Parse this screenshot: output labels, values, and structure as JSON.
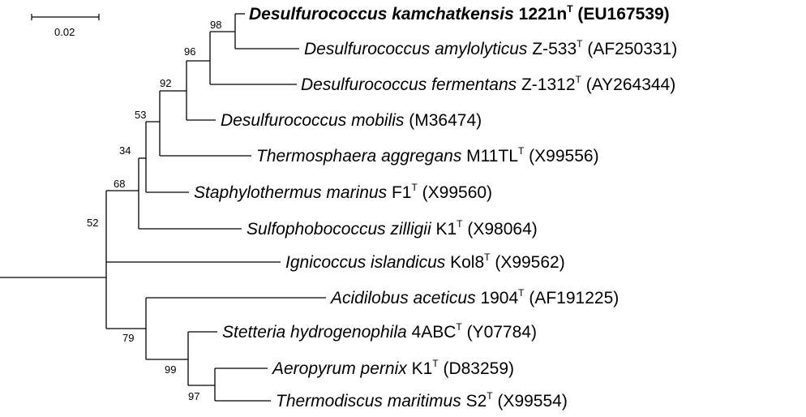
{
  "scale_bar": {
    "label": "0.02"
  },
  "bootstrap": {
    "b98": "98",
    "b96": "96",
    "b92": "92",
    "b53": "53",
    "b34": "34",
    "b68": "68",
    "b52": "52",
    "b79": "79",
    "b99": "99",
    "b97": "97"
  },
  "taxa": [
    {
      "genus_species": "Desulfurococcus kamchatkensis",
      "strain": "1221n",
      "type_mark": "T",
      "accession": "(EU167539)"
    },
    {
      "genus_species": "Desulfurococcus amylolyticus",
      "strain": "Z-533",
      "type_mark": "T",
      "accession": "(AF250331)"
    },
    {
      "genus_species": "Desulfurococcus fermentans",
      "strain": "Z-1312",
      "type_mark": "T",
      "accession": "(AY264344)"
    },
    {
      "genus_species": "Desulfurococcus mobilis",
      "strain": "",
      "type_mark": "",
      "accession": "(M36474)"
    },
    {
      "genus_species": "Thermosphaera aggregans",
      "strain": "M11TL",
      "type_mark": "T",
      "accession": "(X99556)"
    },
    {
      "genus_species": "Staphylothermus marinus",
      "strain": "F1",
      "type_mark": "T",
      "accession": "(X99560)"
    },
    {
      "genus_species": "Sulfophobococcus zilligii",
      "strain": "K1",
      "type_mark": "T",
      "accession": "(X98064)"
    },
    {
      "genus_species": "Ignicoccus islandicus",
      "strain": "Kol8",
      "type_mark": "T",
      "accession": "(X99562)"
    },
    {
      "genus_species": "Acidilobus aceticus",
      "strain": "1904",
      "type_mark": "T",
      "accession": "(AF191225)"
    },
    {
      "genus_species": "Stetteria hydrogenophila",
      "strain": "4ABC",
      "type_mark": "T",
      "accession": "(Y07784)"
    },
    {
      "genus_species": "Aeropyrum pernix",
      "strain": " K1",
      "type_mark": "T",
      "accession": "(D83259)"
    },
    {
      "genus_species": "Thermodiscus maritimus",
      "strain": "S2",
      "type_mark": "T",
      "accession": "(X99554)"
    }
  ]
}
